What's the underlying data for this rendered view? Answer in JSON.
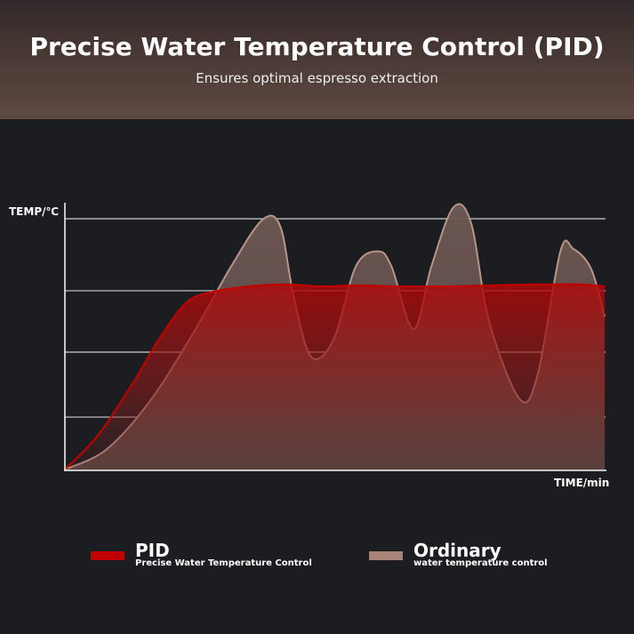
{
  "header": {
    "title": "Precise Water Temperature Control (PID)",
    "subtitle": "Ensures optimal espresso extraction"
  },
  "chart_data": {
    "type": "area",
    "title": "",
    "xlabel": "TIME/min",
    "ylabel": "TEMP/℃",
    "xlim": [
      0,
      100
    ],
    "ylim": [
      0,
      100
    ],
    "grid": true,
    "tick_labels_shown": false,
    "legend_placement": "bottom",
    "series": [
      {
        "name": "Ordinary",
        "description": "water temperature control",
        "color": "#a88478",
        "x": [
          0,
          7.7,
          16.0,
          24.2,
          30.8,
          36.6,
          39.9,
          42.3,
          45.6,
          49.8,
          53.9,
          58.0,
          60.5,
          64.6,
          67.9,
          72.0,
          75.3,
          78.6,
          84.3,
          87.6,
          91.8,
          94.2,
          97.5,
          100
        ],
        "y": [
          0,
          8,
          28,
          56,
          81,
          99.6,
          97,
          70,
          45,
          52,
          81,
          87,
          81,
          56,
          81,
          104.6,
          98,
          59,
          28,
          38,
          87,
          88,
          80,
          61
        ]
      },
      {
        "name": "PID",
        "description": "Precise Water Temperature Control",
        "color": "#c00000",
        "x": [
          0,
          6.1,
          12.7,
          17.6,
          22.6,
          27.5,
          34.1,
          40.7,
          47.3,
          53.9,
          62.1,
          70.3,
          78.6,
          86.8,
          95.1,
          100
        ],
        "y": [
          0,
          13.5,
          34.8,
          52.5,
          66.7,
          70.9,
          73.0,
          73.8,
          73.0,
          73.4,
          73.0,
          73.0,
          73.4,
          73.8,
          73.8,
          73.0
        ]
      }
    ]
  }
}
